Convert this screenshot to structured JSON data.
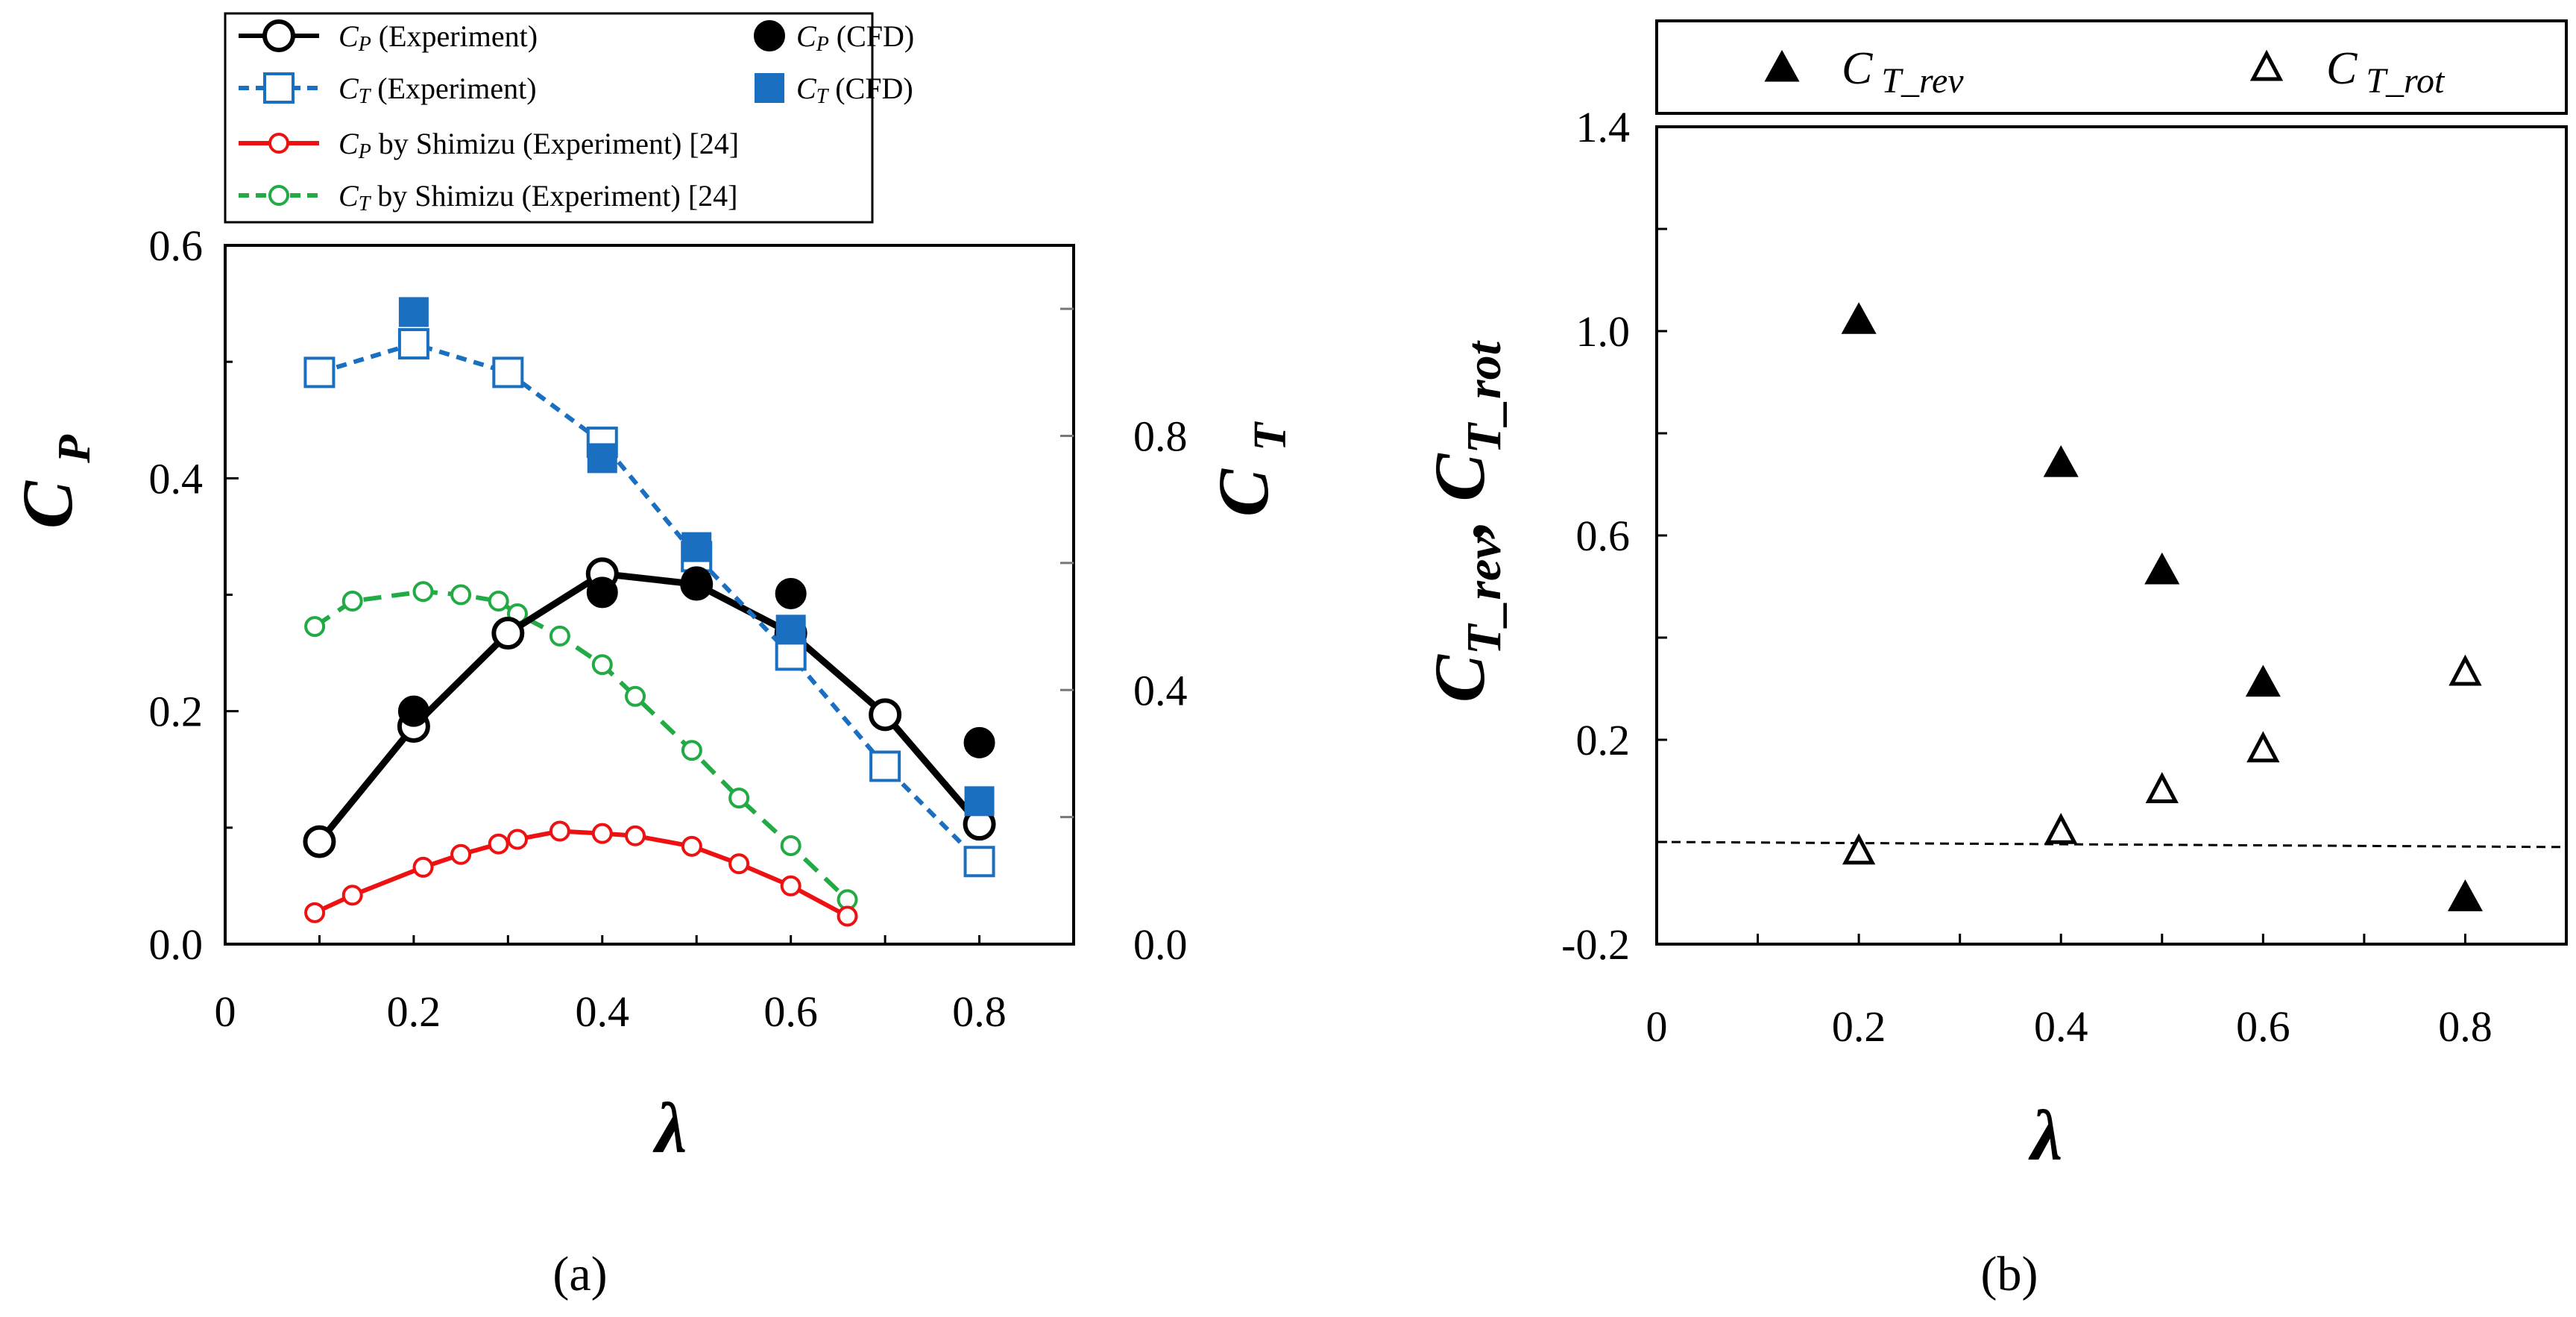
{
  "chart_data": [
    {
      "type": "line",
      "panel_label": "(a)",
      "xlabel": "λ",
      "ylabel": "C_P",
      "y2label": "C_T",
      "xlim": [
        0,
        0.9
      ],
      "ylim": [
        0,
        0.6
      ],
      "y2lim": [
        0,
        1.1
      ],
      "xticks": [
        "0",
        "0.2",
        "0.4",
        "0.6",
        "0.8"
      ],
      "yticks": [
        "0.0",
        "0.2",
        "0.4",
        "0.6"
      ],
      "y2ticks": [
        "0.0",
        "0.4",
        "0.8"
      ],
      "legend_placement": "top",
      "series": [
        {
          "name": "C_P (Experiment)",
          "label_sym": "C",
          "label_sub": "P",
          "label_rest": " (Experiment)",
          "axis": "left",
          "color": "#000000",
          "line": "solid",
          "marker": "open-circle",
          "x": [
            0.1,
            0.2,
            0.3,
            0.4,
            0.5,
            0.6,
            0.7,
            0.8
          ],
          "y": [
            0.088,
            0.187,
            0.267,
            0.318,
            0.309,
            0.267,
            0.197,
            0.103
          ]
        },
        {
          "name": "C_P (CFD)",
          "label_sym": "C",
          "label_sub": "P",
          "label_rest": " (CFD)",
          "axis": "left",
          "color": "#000000",
          "line": "none",
          "marker": "filled-circle",
          "x": [
            0.2,
            0.4,
            0.5,
            0.6,
            0.8
          ],
          "y": [
            0.2,
            0.302,
            0.311,
            0.301,
            0.173
          ]
        },
        {
          "name": "C_T (Experiment)",
          "label_sym": "C",
          "label_sub": "T",
          "label_rest": " (Experiment)",
          "axis": "right",
          "color": "#1a6fc0",
          "line": "dashed",
          "marker": "open-square",
          "x": [
            0.1,
            0.2,
            0.3,
            0.4,
            0.5,
            0.6,
            0.7,
            0.8
          ],
          "y": [
            0.9,
            0.945,
            0.9,
            0.79,
            0.61,
            0.455,
            0.28,
            0.13
          ]
        },
        {
          "name": "C_T (CFD)",
          "label_sym": "C",
          "label_sub": "T",
          "label_rest": " (CFD)",
          "axis": "right",
          "color": "#1a6fc0",
          "line": "none",
          "marker": "filled-square",
          "x": [
            0.2,
            0.4,
            0.5,
            0.6,
            0.8
          ],
          "y": [
            0.995,
            0.765,
            0.625,
            0.495,
            0.225
          ]
        },
        {
          "name": "C_P by Shimizu (Experiment) [24]",
          "label_sym": "C",
          "label_sub": "P",
          "label_rest": " by Shimizu (Experiment) [24]",
          "axis": "left",
          "color": "#ee1111",
          "line": "solid",
          "marker": "open-circle-small",
          "x": [
            0.095,
            0.135,
            0.21,
            0.25,
            0.29,
            0.31,
            0.355,
            0.4,
            0.435,
            0.495,
            0.545,
            0.6,
            0.66
          ],
          "y": [
            0.027,
            0.042,
            0.066,
            0.077,
            0.086,
            0.09,
            0.097,
            0.095,
            0.093,
            0.084,
            0.069,
            0.05,
            0.024
          ]
        },
        {
          "name": "C_T by Shimizu (Experiment) [24]",
          "label_sym": "C",
          "label_sub": "T",
          "label_rest": " by Shimizu (Experiment) [24]",
          "axis": "right",
          "color": "#22aa44",
          "line": "dashed",
          "marker": "open-circle-small",
          "x": [
            0.095,
            0.135,
            0.21,
            0.25,
            0.29,
            0.31,
            0.355,
            0.4,
            0.435,
            0.495,
            0.545,
            0.6,
            0.66
          ],
          "y": [
            0.5,
            0.54,
            0.555,
            0.55,
            0.54,
            0.52,
            0.485,
            0.44,
            0.39,
            0.305,
            0.23,
            0.155,
            0.07
          ]
        }
      ]
    },
    {
      "type": "scatter",
      "panel_label": "(b)",
      "xlabel": "λ",
      "ylabel": "C_T_rev, C_T_rot",
      "ylabel_parts": {
        "c": "C",
        "rev": "T_rev",
        "sep": ", ",
        "rot": "T_rot"
      },
      "xlim": [
        0,
        0.9
      ],
      "ylim": [
        -0.2,
        1.4
      ],
      "xticks": [
        "0",
        "0.2",
        "0.4",
        "0.6",
        "0.8"
      ],
      "yticks": [
        "-0.2",
        "0.2",
        "0.6",
        "1.0",
        "1.4"
      ],
      "legend_placement": "top",
      "series": [
        {
          "name": "C_T_rev",
          "label_sym": "C",
          "label_sub": "T_rev",
          "marker": "filled-triangle",
          "color": "#000000",
          "x": [
            0.2,
            0.4,
            0.5,
            0.6,
            0.8
          ],
          "y": [
            1.02,
            0.74,
            0.53,
            0.31,
            -0.11
          ]
        },
        {
          "name": "C_T_rot",
          "label_sym": "C",
          "label_sub": "T_rot",
          "marker": "open-triangle",
          "color": "#000000",
          "x": [
            0.2,
            0.4,
            0.5,
            0.6,
            0.8
          ],
          "y": [
            -0.02,
            0.02,
            0.1,
            0.18,
            0.33
          ]
        }
      ],
      "reference_line": {
        "style": "dashed",
        "y_start": 0.0,
        "y_end": -0.01
      }
    }
  ]
}
